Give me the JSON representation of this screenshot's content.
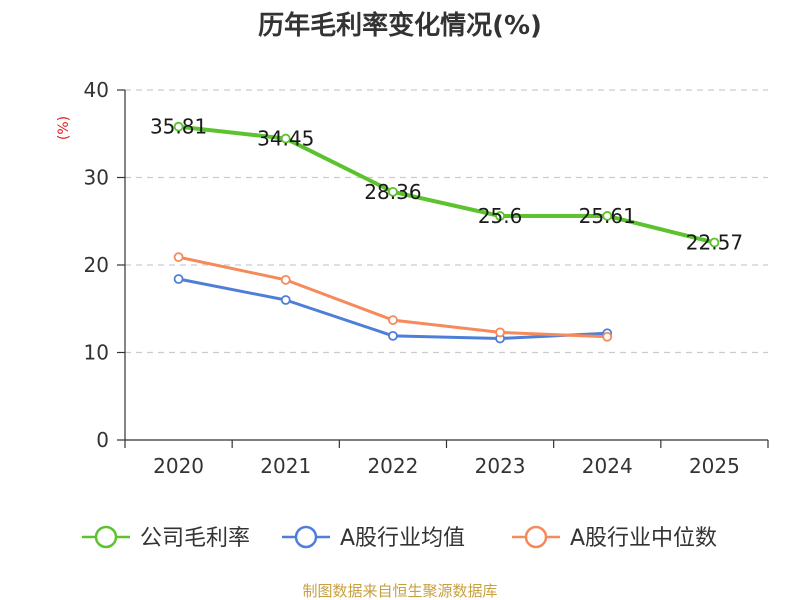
{
  "chart_data": {
    "type": "line",
    "title": "历年毛利率变化情况(%)",
    "ylabel": "(%)",
    "xlabel": "",
    "categories": [
      "2020",
      "2021",
      "2022",
      "2023",
      "2024",
      "2025"
    ],
    "ylim": [
      0,
      40
    ],
    "yticks": [
      0,
      10,
      20,
      30,
      40
    ],
    "grid": "horizontal-dashed",
    "legend_position": "bottom",
    "series": [
      {
        "name": "公司毛利率",
        "color": "#5cc22d",
        "values": [
          35.81,
          34.45,
          28.36,
          25.6,
          25.61,
          22.57
        ],
        "labels": [
          "35.81",
          "34.45",
          "28.36",
          "25.6",
          "25.61",
          "22.57"
        ]
      },
      {
        "name": "A股行业均值",
        "color": "#4e7fd8",
        "values": [
          18.4,
          16.0,
          11.9,
          11.6,
          12.2,
          null
        ]
      },
      {
        "name": "A股行业中位数",
        "color": "#f58a5a",
        "values": [
          20.9,
          18.3,
          13.7,
          12.3,
          11.8,
          null
        ]
      }
    ]
  },
  "source_text": "制图数据来自恒生聚源数据库",
  "colors": {
    "unit": "#e02020",
    "source": "#c8a040",
    "grid": "#cccccc",
    "axis": "#333333"
  }
}
